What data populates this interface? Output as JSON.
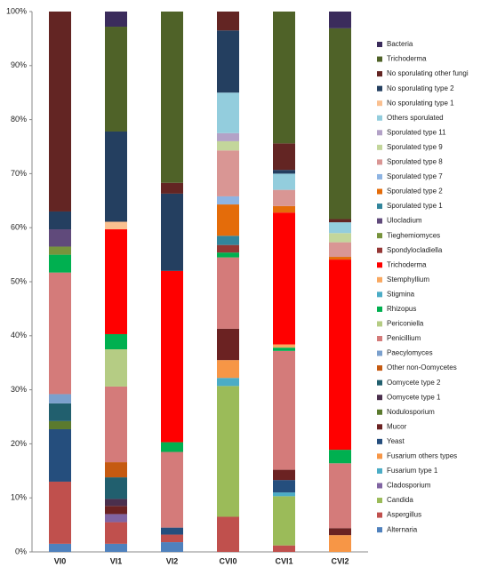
{
  "chart_data": {
    "type": "bar",
    "stacked": true,
    "categories": [
      "VI0",
      "VI1",
      "VI2",
      "CVI0",
      "CVI1",
      "CVI2"
    ],
    "ylim": [
      0,
      100
    ],
    "yticks": [
      {
        "value": 0,
        "label": "0%"
      },
      {
        "value": 10,
        "label": "10%"
      },
      {
        "value": 20,
        "label": "20%"
      },
      {
        "value": 30,
        "label": "30%"
      },
      {
        "value": 40,
        "label": "40%"
      },
      {
        "value": 50,
        "label": "50%"
      },
      {
        "value": 60,
        "label": "60%"
      },
      {
        "value": 70,
        "label": "70%"
      },
      {
        "value": 80,
        "label": "80%"
      },
      {
        "value": 90,
        "label": "90%"
      },
      {
        "value": 100,
        "label": "100%"
      }
    ],
    "legend": "right",
    "series": [
      {
        "name": "Alternaria",
        "color": "#4f81bd",
        "values": [
          1.5,
          1.5,
          1.8,
          0,
          0,
          0
        ]
      },
      {
        "name": "Aspergillus",
        "color": "#c0504d",
        "values": [
          11.5,
          4,
          1.4,
          6.5,
          1.2,
          0
        ]
      },
      {
        "name": "Candida",
        "color": "#9bbb59",
        "values": [
          0,
          0,
          0,
          24.2,
          9.1,
          0
        ]
      },
      {
        "name": "Cladosporium",
        "color": "#8064a2",
        "values": [
          0,
          1.5,
          0,
          0,
          0,
          0
        ]
      },
      {
        "name": "Fusarium type 1",
        "color": "#4bacc6",
        "values": [
          0,
          0,
          0,
          1.5,
          0.7,
          0
        ]
      },
      {
        "name": "Fusarium others types",
        "color": "#f79646",
        "values": [
          0,
          0,
          0,
          3.3,
          0,
          3.1
        ]
      },
      {
        "name": "Yeast",
        "color": "#254e7d",
        "values": [
          9.7,
          0,
          1.3,
          0,
          2.3,
          0
        ]
      },
      {
        "name": "Mucor",
        "color": "#6b2222",
        "values": [
          0,
          1.5,
          0,
          5.8,
          1.9,
          1.3
        ]
      },
      {
        "name": "Nodulosporium",
        "color": "#5b7a2e",
        "values": [
          1.5,
          0,
          0,
          0,
          0,
          0
        ]
      },
      {
        "name": "Oomycete type 1",
        "color": "#4a2f4d",
        "values": [
          0,
          1.3,
          0,
          0,
          0,
          0
        ]
      },
      {
        "name": "Oomycete type 2",
        "color": "#215f6e",
        "values": [
          3.3,
          4,
          0,
          0,
          0,
          0
        ]
      },
      {
        "name": "Other non-Oomycetes",
        "color": "#c55a11",
        "values": [
          0,
          2.8,
          0,
          0,
          0,
          0
        ]
      },
      {
        "name": "Paecylomyces",
        "color": "#7ba0cd",
        "values": [
          1.7,
          0,
          0,
          0,
          0,
          0
        ]
      },
      {
        "name": "Penicillium",
        "color": "#d47b7a",
        "values": [
          22.5,
          14,
          14,
          13.2,
          22,
          12
        ]
      },
      {
        "name": "Periconiella",
        "color": "#b5cc84",
        "values": [
          0,
          6.9,
          0,
          0,
          0,
          0
        ]
      },
      {
        "name": "Rhizopus",
        "color": "#00b050",
        "values": [
          3.3,
          2.8,
          1.8,
          0.9,
          0.6,
          2.5
        ]
      },
      {
        "name": "Stigmina",
        "color": "#4bacc6",
        "values": [
          0,
          0,
          0,
          0,
          0,
          0
        ]
      },
      {
        "name": "Stemphyllium",
        "color": "#f9a860",
        "values": [
          0,
          0,
          0,
          0,
          0.6,
          0
        ]
      },
      {
        "name": "Trichoderma",
        "color": "#ff0000",
        "values": [
          0,
          19.4,
          31.7,
          0,
          24.4,
          35.2
        ]
      },
      {
        "name": "Spondylocladiella",
        "color": "#953735",
        "values": [
          0,
          0,
          0,
          1.4,
          0,
          0
        ]
      },
      {
        "name": "Tieghemiomyces",
        "color": "#77933c",
        "values": [
          1.5,
          0,
          0,
          0,
          0,
          0
        ]
      },
      {
        "name": "Ulocladium",
        "color": "#604a7b",
        "values": [
          3.2,
          0,
          0,
          0,
          0,
          0
        ]
      },
      {
        "name": "Sporulated type 1",
        "color": "#31859c",
        "values": [
          0,
          0,
          0,
          1.7,
          0,
          0
        ]
      },
      {
        "name": "Sporulated type 2",
        "color": "#e46c0a",
        "values": [
          0,
          0,
          0,
          5.8,
          1.2,
          0.5
        ]
      },
      {
        "name": "Sporulated type 7",
        "color": "#8eb4e3",
        "values": [
          0,
          0,
          0,
          1.5,
          0,
          0
        ]
      },
      {
        "name": "Sporulated type 8",
        "color": "#d99694",
        "values": [
          0,
          0,
          0,
          8.5,
          3,
          2.7
        ]
      },
      {
        "name": "Sporulated type 9",
        "color": "#c3d69b",
        "values": [
          0,
          0,
          0,
          1.7,
          0,
          1.7
        ]
      },
      {
        "name": "Sporulated type 11",
        "color": "#b3a2c7",
        "values": [
          0,
          0,
          0,
          1.5,
          0,
          0
        ]
      },
      {
        "name": "Others sporulated",
        "color": "#93cddd",
        "values": [
          0,
          0,
          0,
          7.5,
          3,
          2
        ]
      },
      {
        "name": "No sporulating type 1",
        "color": "#fac090",
        "values": [
          0,
          1.4,
          0,
          0,
          0,
          0
        ]
      },
      {
        "name": "No sporulating type 2",
        "color": "#243f60",
        "values": [
          3.3,
          16.7,
          14.3,
          11.5,
          0.7,
          0
        ]
      },
      {
        "name": "No sporulating other fungi",
        "color": "#632523",
        "values": [
          37,
          0,
          2,
          3.5,
          4.9,
          0.6
        ]
      },
      {
        "name": "Trichoderma",
        "color": "#4f6228",
        "values": [
          0,
          19.4,
          31.7,
          0,
          24.4,
          35.3
        ]
      },
      {
        "name": "Bacteria",
        "color": "#3b2c5c",
        "values": [
          0,
          2.8,
          0,
          0,
          0,
          3.1
        ]
      }
    ]
  }
}
